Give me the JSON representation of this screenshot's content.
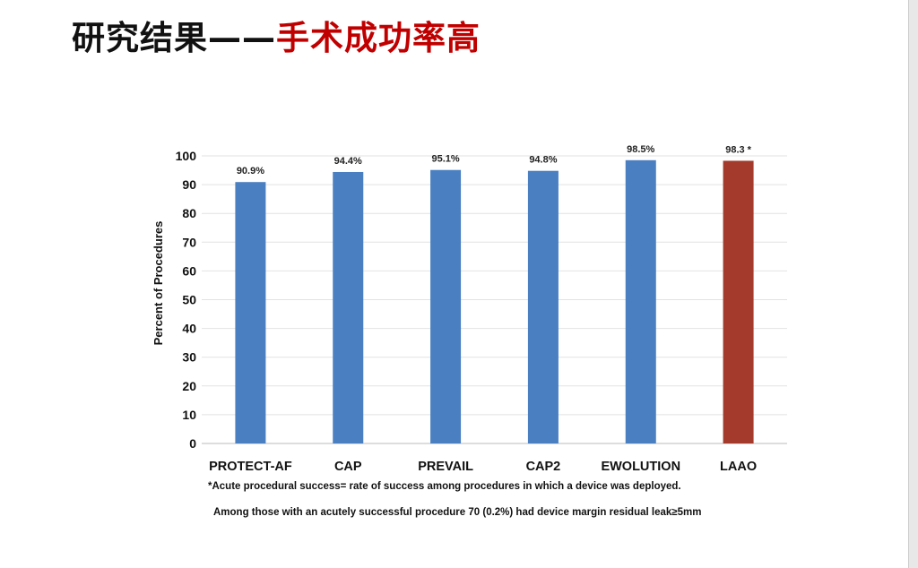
{
  "title": {
    "part1": "研究结果——",
    "part2": "手术成功率高"
  },
  "chart_data": {
    "type": "bar",
    "categories": [
      "PROTECT-AF",
      "CAP",
      "PREVAIL",
      "CAP2",
      "EWOLUTION",
      "LAAO"
    ],
    "values": [
      90.9,
      94.4,
      95.1,
      94.8,
      98.5,
      98.3
    ],
    "data_labels": [
      "90.9%",
      "94.4%",
      "95.1%",
      "94.8%",
      "98.5%",
      "98.3 *"
    ],
    "colors": [
      "#4a7fc1",
      "#4a7fc1",
      "#4a7fc1",
      "#4a7fc1",
      "#4a7fc1",
      "#a33a2c"
    ],
    "ylabel": "Percent of Procedures",
    "xlabel": "",
    "ylim": [
      0,
      100
    ],
    "yticks": [
      0,
      10,
      20,
      30,
      40,
      50,
      60,
      70,
      80,
      90,
      100
    ],
    "grid": true
  },
  "notes": {
    "footnote": "*Acute procedural success= rate of success among procedures in which a device was deployed.",
    "leak": "Among those with an acutely successful procedure 70 (0.2%) had device margin residual leak≥5mm"
  }
}
